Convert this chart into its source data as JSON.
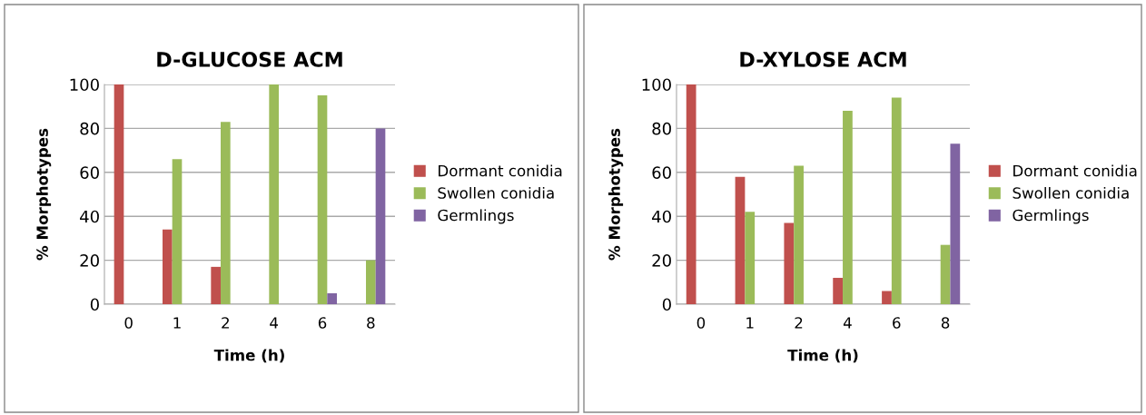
{
  "chart_data": [
    {
      "type": "bar",
      "title": "D-GLUCOSE ACM",
      "xlabel": "Time (h)",
      "ylabel": "% Morphotypes",
      "categories": [
        "0",
        "1",
        "2",
        "4",
        "6",
        "8"
      ],
      "ylim": [
        0,
        100
      ],
      "yticks": [
        0,
        20,
        40,
        60,
        80,
        100
      ],
      "grid": "y",
      "legend": "right",
      "series": [
        {
          "name": "Dormant conidia",
          "color": "#c0504d",
          "values": [
            100,
            34,
            17,
            0,
            0,
            0
          ]
        },
        {
          "name": "Swollen conidia",
          "color": "#9bbb59",
          "values": [
            0,
            66,
            83,
            100,
            95,
            20
          ]
        },
        {
          "name": "Germlings",
          "color": "#8064a2",
          "values": [
            0,
            0,
            0,
            0,
            5,
            80
          ]
        }
      ]
    },
    {
      "type": "bar",
      "title": "D-XYLOSE ACM",
      "xlabel": "Time (h)",
      "ylabel": "% Morphotypes",
      "categories": [
        "0",
        "1",
        "2",
        "4",
        "6",
        "8"
      ],
      "ylim": [
        0,
        100
      ],
      "yticks": [
        0,
        20,
        40,
        60,
        80,
        100
      ],
      "grid": "y",
      "legend": "right",
      "series": [
        {
          "name": "Dormant conidia",
          "color": "#c0504d",
          "values": [
            100,
            58,
            37,
            12,
            6,
            0
          ]
        },
        {
          "name": "Swollen conidia",
          "color": "#9bbb59",
          "values": [
            0,
            42,
            63,
            88,
            94,
            27
          ]
        },
        {
          "name": "Germlings",
          "color": "#8064a2",
          "values": [
            0,
            0,
            0,
            0,
            0,
            73
          ]
        }
      ]
    }
  ]
}
